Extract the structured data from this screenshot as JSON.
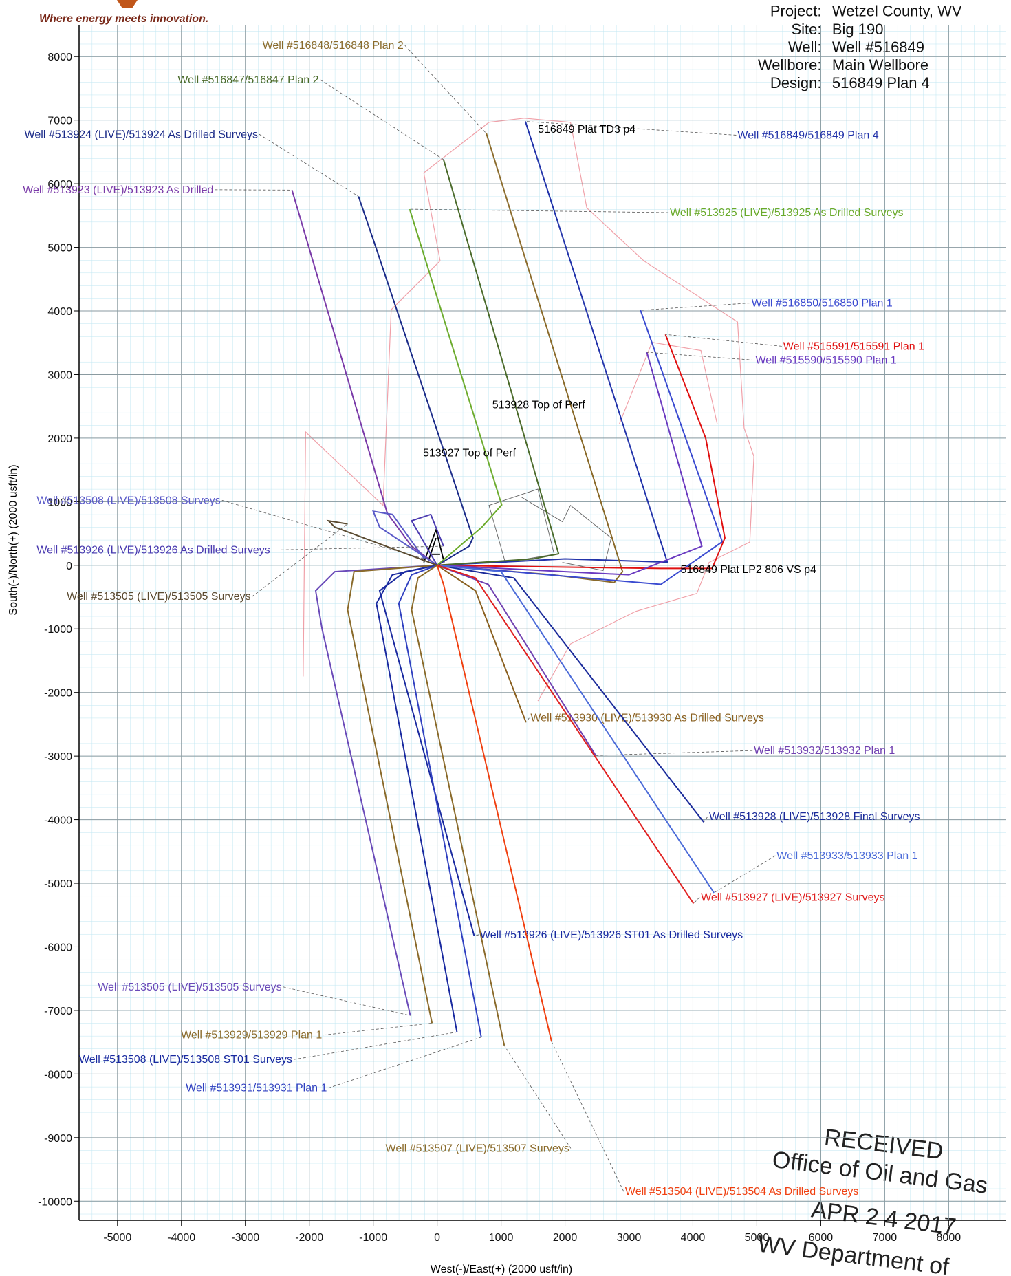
{
  "logo": {
    "tagline": "Where energy meets innovation."
  },
  "header": {
    "fields": [
      {
        "label": "Project:",
        "value": "Wetzel County, WV"
      },
      {
        "label": "Site:",
        "value": "Big 190"
      },
      {
        "label": "Well:",
        "value": "Well #516849"
      },
      {
        "label": "Wellbore:",
        "value": "Main Wellbore"
      },
      {
        "label": "Design:",
        "value": "516849 Plan 4"
      }
    ]
  },
  "stamp": {
    "lines": [
      "RECEIVED",
      "Office of Oil and Gas",
      "APR 2 4 2017",
      "WV Department of"
    ]
  },
  "chart_data": {
    "type": "line",
    "xlabel": "West(-)/East(+) (2000 usft/in)",
    "ylabel": "South(-)/North(+) (2000 usft/in)",
    "xlim": [
      -5600,
      8900
    ],
    "ylim": [
      -10300,
      8500
    ],
    "xticks": [
      -5000,
      -4000,
      -3000,
      -2000,
      -1000,
      0,
      1000,
      2000,
      3000,
      4000,
      5000,
      6000,
      7000,
      8000
    ],
    "yticks": [
      -10000,
      -9000,
      -8000,
      -7000,
      -6000,
      -5000,
      -4000,
      -3000,
      -2000,
      -1000,
      0,
      1000,
      2000,
      3000,
      4000,
      5000,
      6000,
      7000,
      8000
    ],
    "grid": true,
    "series": [
      {
        "name": "Well #516849/516849 Plan 4",
        "color": "#2233aa",
        "x": [
          0,
          2000,
          3600,
          1380
        ],
        "y": [
          0,
          100,
          50,
          6980
        ]
      },
      {
        "name": "Well #516848/516848 Plan 2",
        "color": "#8a6a2a",
        "x": [
          0,
          1800,
          2770,
          2900,
          770
        ],
        "y": [
          0,
          -150,
          -270,
          -100,
          6790
        ]
      },
      {
        "name": "Well #516847/516847 Plan 2",
        "color": "#4a6a2a",
        "x": [
          0,
          1500,
          1900,
          100
        ],
        "y": [
          0,
          100,
          180,
          6380
        ]
      },
      {
        "name": "Well #513924 (LIVE)/513924 As Drilled Surveys",
        "color": "#1a2a88",
        "x": [
          0,
          500,
          560,
          -970,
          -1230
        ],
        "y": [
          0,
          300,
          430,
          5035,
          5800
        ]
      },
      {
        "name": "Well #513923 (LIVE)/513923 As Drilled",
        "color": "#7a3aa8",
        "x": [
          0,
          -400,
          -780,
          -2270
        ],
        "y": [
          0,
          300,
          820,
          5900
        ]
      },
      {
        "name": "Well #513925 (LIVE)/513925 As Drilled Surveys",
        "color": "#6aaa2a",
        "x": [
          0,
          700,
          1010,
          -430
        ],
        "y": [
          0,
          600,
          950,
          5600
        ]
      },
      {
        "name": "Well #516850/516850 Plan 1",
        "color": "#3a4ad0",
        "x": [
          0,
          3500,
          4460,
          3180
        ],
        "y": [
          0,
          -300,
          370,
          4010
        ]
      },
      {
        "name": "Well #515591/515591 Plan 1",
        "color": "#e01010",
        "x": [
          0,
          3500,
          4300,
          4500,
          4200,
          3570
        ],
        "y": [
          0,
          -50,
          -50,
          430,
          2000,
          3630
        ]
      },
      {
        "name": "Well #515590/515590 Plan 1",
        "color": "#6a3ac0",
        "x": [
          0,
          3000,
          4140,
          3280
        ],
        "y": [
          0,
          -150,
          300,
          3350
        ]
      },
      {
        "name": "Well #513930 (LIVE)/513930 As Drilled Surveys",
        "color": "#8a6020",
        "x": [
          0,
          600,
          1390
        ],
        "y": [
          0,
          -400,
          -2470
        ]
      },
      {
        "name": "Well #513932/513932 Plan 1",
        "color": "#7040b0",
        "x": [
          0,
          800,
          2480
        ],
        "y": [
          0,
          -300,
          -2990
        ]
      },
      {
        "name": "Well #513928 (LIVE)/513928 Final Surveys",
        "color": "#1a2a9a",
        "x": [
          0,
          1200,
          4170
        ],
        "y": [
          0,
          -200,
          -4040
        ]
      },
      {
        "name": "Well #513933/513933 Plan 1",
        "color": "#4a6ad8",
        "x": [
          0,
          1000,
          4330
        ],
        "y": [
          0,
          -100,
          -5150
        ]
      },
      {
        "name": "Well #513927 (LIVE)/513927 Surveys",
        "color": "#e02020",
        "x": [
          0,
          600,
          4010
        ],
        "y": [
          0,
          -200,
          -5320
        ]
      },
      {
        "name": "Well #513926 (LIVE)/513926 ST01 As Drilled Surveys",
        "color": "#1a2aa0",
        "x": [
          0,
          -500,
          -900,
          580
        ],
        "y": [
          0,
          -100,
          -400,
          -5830
        ]
      },
      {
        "name": "Well #513505 (LIVE)/513505 Surveys",
        "color": "#6a4ab8",
        "x": [
          0,
          -1600,
          -1900,
          -1800,
          -420
        ],
        "y": [
          0,
          -100,
          -400,
          -1000,
          -7080
        ]
      },
      {
        "name": "Well #513929/513929 Plan 1",
        "color": "#8a6a2a",
        "x": [
          0,
          -1300,
          -1400,
          -80
        ],
        "y": [
          0,
          -100,
          -700,
          -7200
        ]
      },
      {
        "name": "Well #513508 (LIVE)/513508 ST01 Surveys",
        "color": "#1a2aa0",
        "x": [
          0,
          -700,
          -950,
          310
        ],
        "y": [
          0,
          -150,
          -600,
          -7340
        ]
      },
      {
        "name": "Well #513931/513931 Plan 1",
        "color": "#3040c0",
        "x": [
          0,
          -400,
          -600,
          690
        ],
        "y": [
          0,
          -150,
          -600,
          -7420
        ]
      },
      {
        "name": "Well #513507 (LIVE)/513507 Surveys",
        "color": "#8a6a2a",
        "x": [
          0,
          -300,
          -400,
          1050
        ],
        "y": [
          0,
          -200,
          -700,
          -7550
        ]
      },
      {
        "name": "Well #513504 (LIVE)/513504 As Drilled Surveys",
        "color": "#f04010",
        "x": [
          0,
          100,
          1790
        ],
        "y": [
          0,
          -300,
          -7490
        ]
      },
      {
        "name": "Well #513508 (LIVE)/513508 Surveys",
        "color": "#5a5ac8",
        "x": [
          0,
          -900,
          -1000,
          -700,
          -200
        ],
        "y": [
          0,
          600,
          850,
          800,
          100
        ]
      },
      {
        "name": "Well #513926 (LIVE)/513926 As Drilled Surveys",
        "color": "#4a3ab0",
        "x": [
          0,
          -400,
          -100,
          100
        ],
        "y": [
          0,
          700,
          800,
          300
        ]
      },
      {
        "name": "Well #513505 (LIVE)/513505 Surveys",
        "color": "#5a4a30",
        "x": [
          0,
          -1600,
          -1700,
          -1400
        ],
        "y": [
          0,
          600,
          700,
          650
        ]
      }
    ],
    "annotations": [
      "516849 Plat TD3 p4",
      "513928 Top of Perf",
      "513927 Top of Perf",
      "516849 Plat LP2 806 VS p4"
    ]
  }
}
